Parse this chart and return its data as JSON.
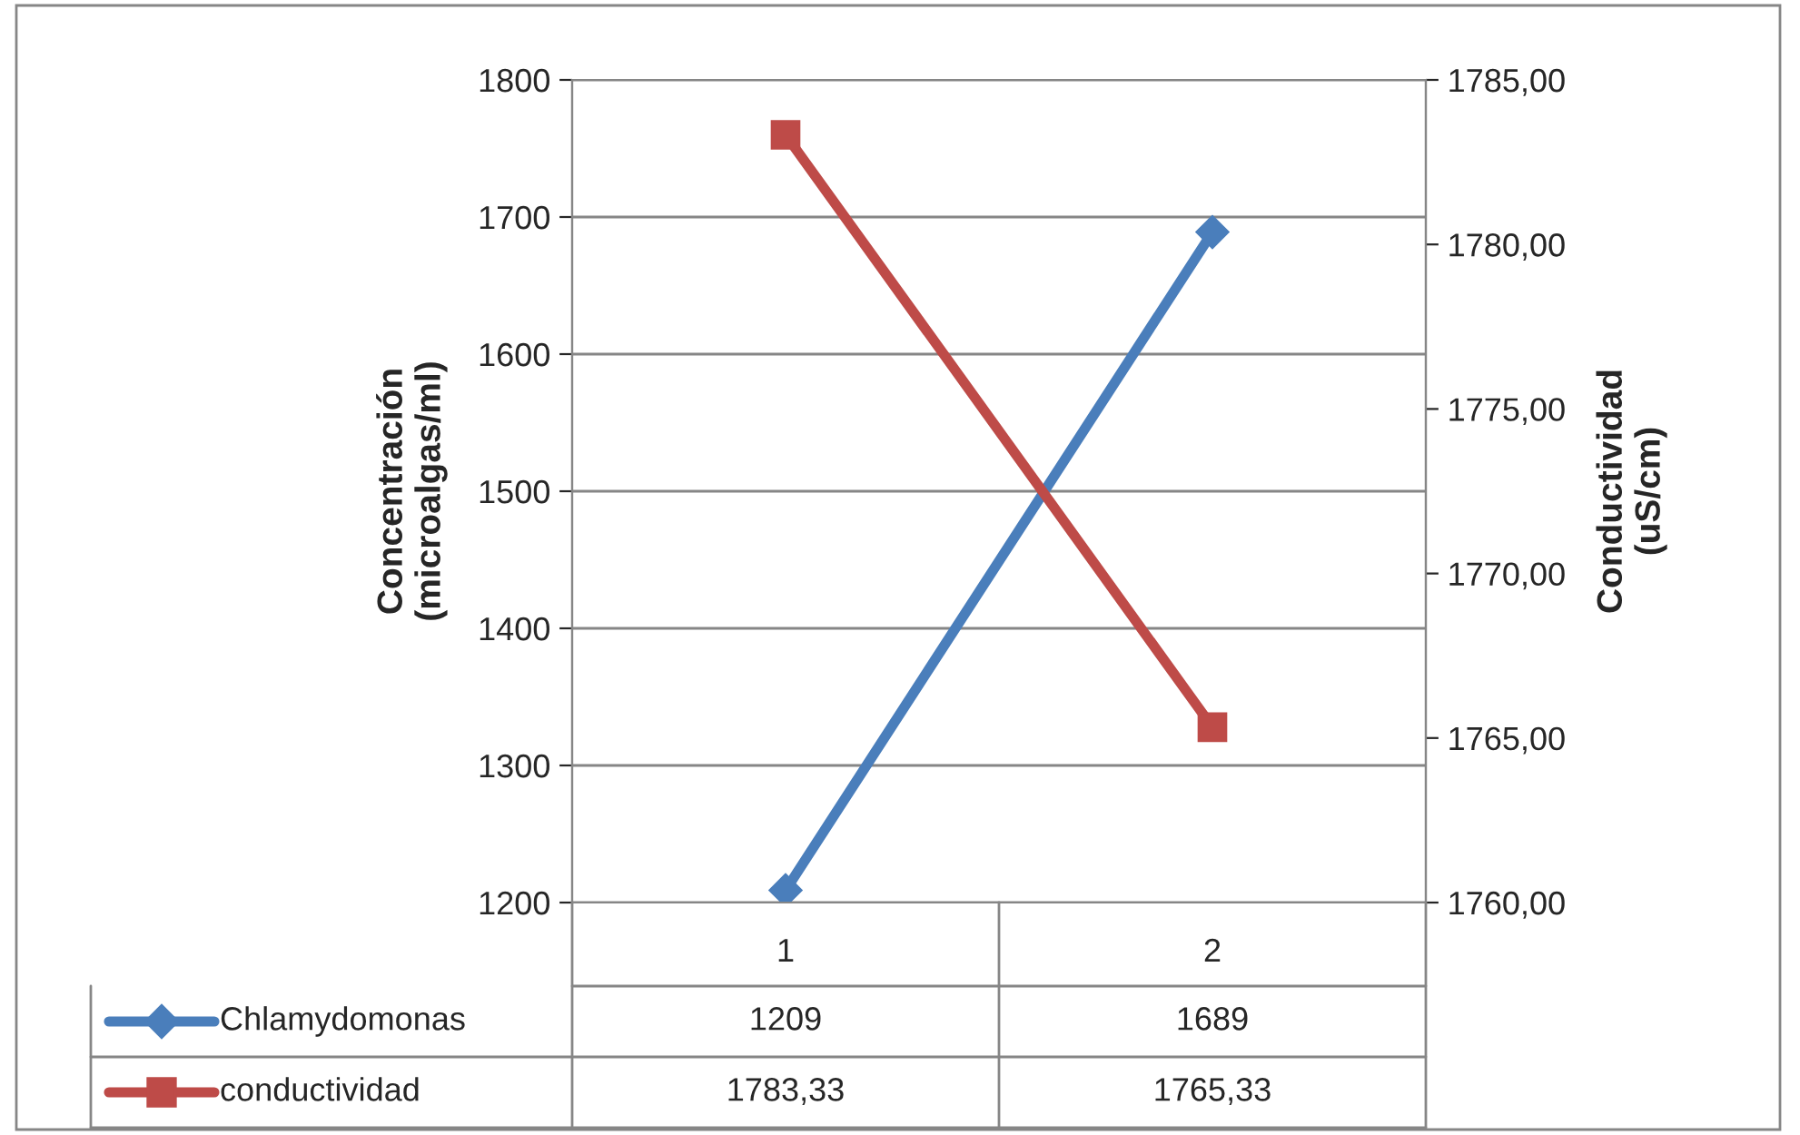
{
  "chart_data": {
    "type": "line",
    "categories": [
      "1",
      "2"
    ],
    "ylabel": "Concentración\n(microalgas/ml)",
    "y2label": "Conductividad\n(uS/cm)",
    "ylim": [
      1200,
      1800
    ],
    "yticks": [
      1200,
      1300,
      1400,
      1500,
      1600,
      1700,
      1800
    ],
    "y2lim": [
      1760,
      1785
    ],
    "y2ticks": [
      {
        "value": 1760,
        "label": "1760,00"
      },
      {
        "value": 1765,
        "label": "1765,00"
      },
      {
        "value": 1770,
        "label": "1770,00"
      },
      {
        "value": 1775,
        "label": "1775,00"
      },
      {
        "value": 1780,
        "label": "1780,00"
      },
      {
        "value": 1785,
        "label": "1785,00"
      }
    ],
    "grid": "y",
    "legend": "bottom left",
    "series": [
      {
        "name": "Chlamydomonas",
        "color": "#4a7ebb",
        "marker": "diamond",
        "values": [
          1209,
          1689
        ],
        "value_labels": [
          "1209",
          "1689"
        ]
      },
      {
        "name": "conductividad",
        "color": "#be4b48",
        "marker": "square",
        "axis": "y2",
        "values": [
          1783.33,
          1765.33
        ],
        "value_labels": [
          "1783,33",
          "1765,33"
        ]
      }
    ]
  }
}
